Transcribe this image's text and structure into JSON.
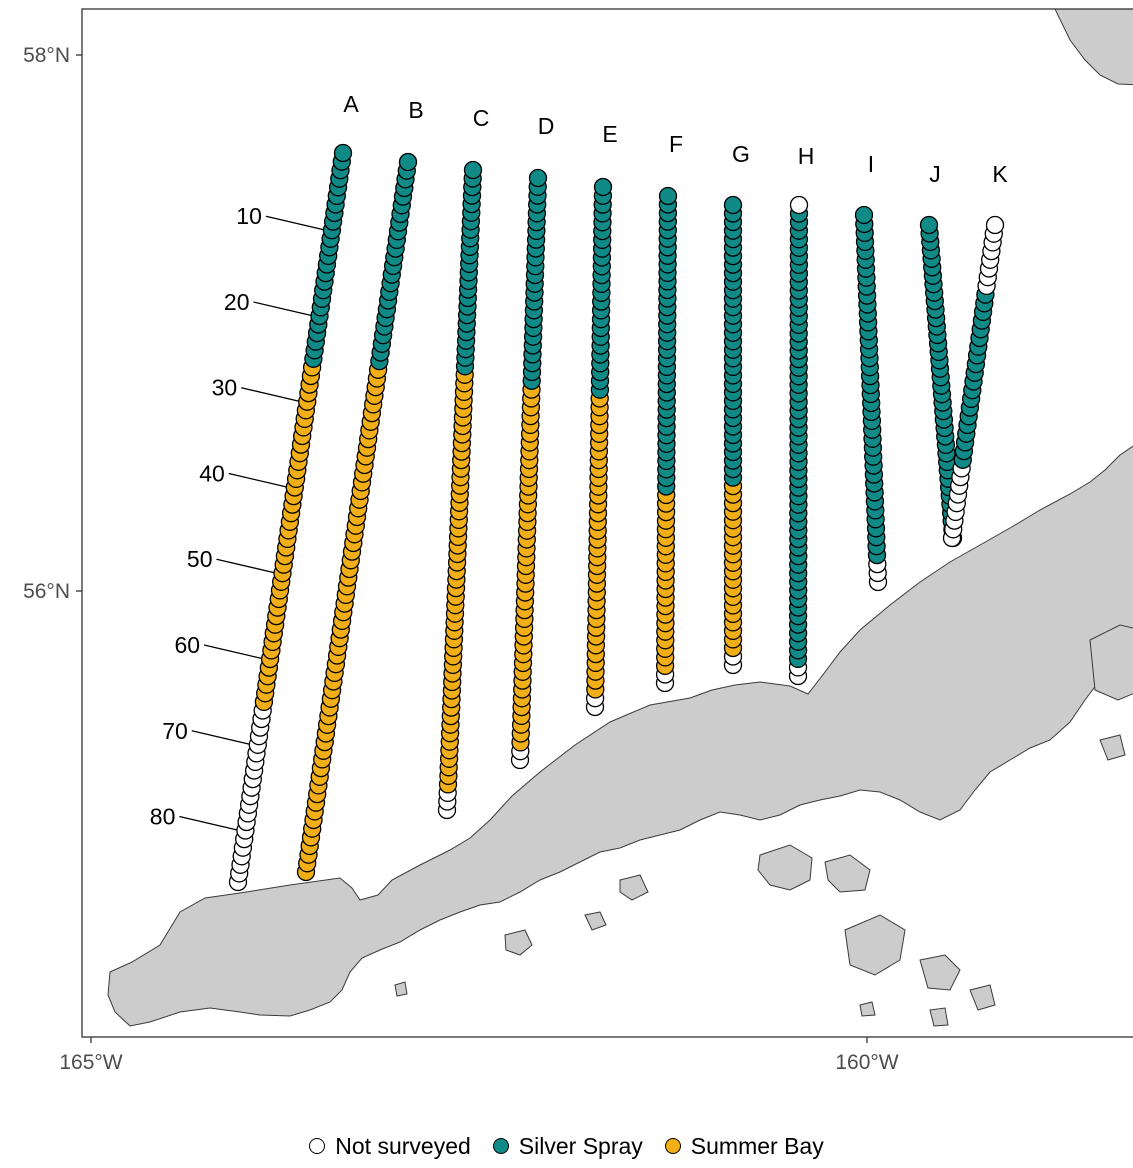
{
  "map": {
    "y_ticks": [
      {
        "id": "lat-58",
        "label": "58°N"
      },
      {
        "id": "lat-56",
        "label": "56°N"
      }
    ],
    "x_ticks": [
      {
        "id": "lon-165",
        "label": "165°W"
      },
      {
        "id": "lon-160",
        "label": "160°W"
      }
    ],
    "station_numbers": [
      "10",
      "20",
      "30",
      "40",
      "50",
      "60",
      "70",
      "80"
    ]
  },
  "legend": {
    "items": [
      {
        "key": "not_surveyed",
        "label": "Not surveyed",
        "color": "#ffffff"
      },
      {
        "key": "silver_spray",
        "label": "Silver Spray",
        "color": "#0f8a87"
      },
      {
        "key": "summer_bay",
        "label": "Summer Bay",
        "color": "#f2ae17"
      }
    ]
  },
  "colors": {
    "land": "#cccccc",
    "land_outline": "#3a3a3a",
    "not_surveyed": "#ffffff",
    "silver_spray": "#0f8a87",
    "summer_bay": "#f2ae17",
    "panel_border": "#333333"
  },
  "transects": [
    {
      "name": "A",
      "segments": [
        {
          "vessel": "silver_spray",
          "from": 1,
          "to": 25
        },
        {
          "vessel": "summer_bay",
          "from": 26,
          "to": 65
        },
        {
          "vessel": "not_surveyed",
          "from": 66,
          "to": 86
        }
      ]
    },
    {
      "name": "B",
      "segments": [
        {
          "vessel": "silver_spray",
          "from": 1,
          "to": 24
        },
        {
          "vessel": "summer_bay",
          "from": 25,
          "to": 83
        }
      ]
    },
    {
      "name": "C",
      "segments": [
        {
          "vessel": "silver_spray",
          "from": 1,
          "to": 24
        },
        {
          "vessel": "summer_bay",
          "from": 25,
          "to": 73
        },
        {
          "vessel": "not_surveyed",
          "from": 74,
          "to": 76
        }
      ]
    },
    {
      "name": "D",
      "segments": [
        {
          "vessel": "silver_spray",
          "from": 1,
          "to": 24
        },
        {
          "vessel": "summer_bay",
          "from": 25,
          "to": 65
        },
        {
          "vessel": "not_surveyed",
          "from": 66,
          "to": 67
        }
      ]
    },
    {
      "name": "E",
      "segments": [
        {
          "vessel": "silver_spray",
          "from": 1,
          "to": 24
        },
        {
          "vessel": "summer_bay",
          "from": 25,
          "to": 58
        },
        {
          "vessel": "not_surveyed",
          "from": 59,
          "to": 60
        }
      ]
    },
    {
      "name": "F",
      "segments": [
        {
          "vessel": "silver_spray",
          "from": 1,
          "to": 35
        },
        {
          "vessel": "summer_bay",
          "from": 36,
          "to": 56
        },
        {
          "vessel": "not_surveyed",
          "from": 57,
          "to": 58
        }
      ]
    },
    {
      "name": "G",
      "segments": [
        {
          "vessel": "silver_spray",
          "from": 1,
          "to": 33
        },
        {
          "vessel": "summer_bay",
          "from": 34,
          "to": 53
        },
        {
          "vessel": "not_surveyed",
          "from": 54,
          "to": 55
        }
      ]
    },
    {
      "name": "H",
      "segments": [
        {
          "vessel": "not_surveyed",
          "from": 1,
          "to": 1
        },
        {
          "vessel": "silver_spray",
          "from": 2,
          "to": 54
        },
        {
          "vessel": "not_surveyed",
          "from": 55,
          "to": 56
        }
      ]
    },
    {
      "name": "I",
      "segments": [
        {
          "vessel": "silver_spray",
          "from": 1,
          "to": 39
        },
        {
          "vessel": "not_surveyed",
          "from": 40,
          "to": 42
        }
      ]
    },
    {
      "name": "J",
      "segments": [
        {
          "vessel": "silver_spray",
          "from": 1,
          "to": 37
        },
        {
          "vessel": "not_surveyed",
          "from": 38,
          "to": 38
        }
      ]
    },
    {
      "name": "K",
      "segments": [
        {
          "vessel": "not_surveyed",
          "from": 1,
          "to": 8
        },
        {
          "vessel": "silver_spray",
          "from": 9,
          "to": 28
        },
        {
          "vessel": "not_surveyed",
          "from": 29,
          "to": 37
        }
      ]
    }
  ]
}
